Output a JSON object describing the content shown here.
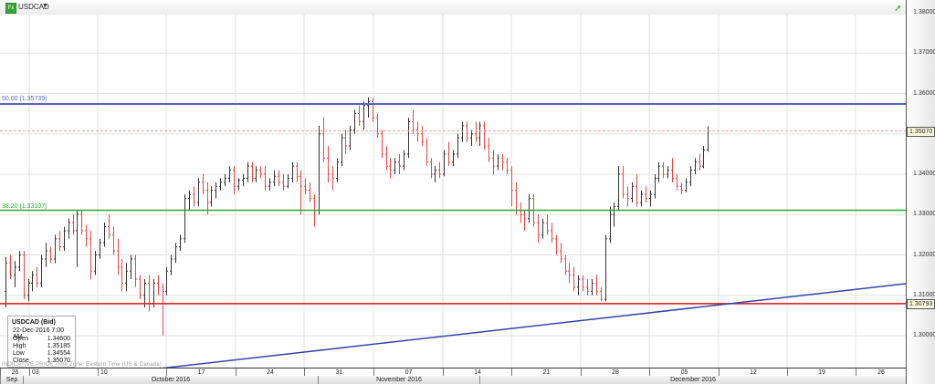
{
  "header": {
    "symbol": "USDCAD",
    "symbol_icon": "fx-icon",
    "dropdown_icon": "caret-down-icon",
    "trend_icon": "trend-up-icon"
  },
  "info_box": {
    "title": "USDCAD (Bid)",
    "datetime": "22-Dec-2016 7:00 AM",
    "rows": [
      {
        "label": "Open",
        "value": "1.34600"
      },
      {
        "label": "High",
        "value": "1.35185"
      },
      {
        "label": "Low",
        "value": "1.34554"
      },
      {
        "label": "Close",
        "value": "1.35070"
      }
    ]
  },
  "footer_note": "INDICATIVE PRICE   Time Zone: Eastern Time (US & Canada)",
  "price_tags": {
    "last": "1.35070",
    "support": "1.30793"
  },
  "fib_labels": {
    "fib50": "50.00 (1.35739)",
    "fib382": "38.20 (1.33107)"
  },
  "colors": {
    "up_bar": "#333333",
    "down_bar": "#ee4444",
    "fib50": "#5566bb",
    "fib382": "#22aa33",
    "support": "#dd1111",
    "trendline": "#3344aa",
    "last_price_line": "#f0a0a0",
    "grid": "#e2e2e2"
  },
  "chart_data": {
    "type": "ohlc",
    "title": "USDCAD",
    "subtitle": "USDCAD (Bid)",
    "xlabel": "",
    "ylabel": "",
    "ylim": [
      1.2925,
      1.383
    ],
    "y_ticks": [
      "1.38000",
      "1.37000",
      "1.36000",
      "1.35000",
      "1.34000",
      "1.33000",
      "1.32000",
      "1.31000",
      "1.30000"
    ],
    "x_ticks": [
      "26",
      "03",
      "10",
      "17",
      "24",
      "31",
      "07",
      "14",
      "21",
      "28",
      "05",
      "12",
      "19",
      "26"
    ],
    "x_months": [
      "Sep",
      "October 2016",
      "November 2016",
      "December 2016"
    ],
    "grid": true,
    "legend": "none",
    "horizontal_lines": [
      {
        "name": "Fibonacci 50.00",
        "value": 1.35739,
        "color": "#5566bb"
      },
      {
        "name": "Fibonacci 38.20",
        "value": 1.33107,
        "color": "#22aa33"
      },
      {
        "name": "Support",
        "value": 1.30793,
        "color": "#dd1111"
      },
      {
        "name": "Last price",
        "value": 1.3507,
        "color": "#f0a0a0",
        "dashed": true
      }
    ],
    "trendline": {
      "from": {
        "date": "2016-10-14",
        "price": 1.2925
      },
      "to": {
        "date": "2016-12-31",
        "price": 1.3126
      }
    },
    "last_bar": {
      "date": "22-Dec-2016 7:00 AM",
      "open": 1.346,
      "high": 1.35185,
      "low": 1.34554,
      "close": 1.3507
    },
    "bar_spacing_px": 4.9,
    "bar_start_x": 6,
    "bars": [
      [
        1.311,
        1.3195,
        1.307,
        1.318
      ],
      [
        1.318,
        1.32,
        1.314,
        1.315
      ],
      [
        1.315,
        1.3185,
        1.312,
        1.317
      ],
      [
        1.317,
        1.321,
        1.316,
        1.32
      ],
      [
        1.32,
        1.321,
        1.309,
        1.31
      ],
      [
        1.31,
        1.314,
        1.3085,
        1.313
      ],
      [
        1.313,
        1.316,
        1.311,
        1.315
      ],
      [
        1.315,
        1.317,
        1.312,
        1.313
      ],
      [
        1.313,
        1.32,
        1.312,
        1.319
      ],
      [
        1.319,
        1.323,
        1.317,
        1.321
      ],
      [
        1.321,
        1.322,
        1.318,
        1.319
      ],
      [
        1.319,
        1.325,
        1.318,
        1.324
      ],
      [
        1.324,
        1.326,
        1.321,
        1.322
      ],
      [
        1.322,
        1.327,
        1.321,
        1.326
      ],
      [
        1.326,
        1.329,
        1.324,
        1.328
      ],
      [
        1.328,
        1.33,
        1.325,
        1.326
      ],
      [
        1.326,
        1.331,
        1.317,
        1.33
      ],
      [
        1.33,
        1.331,
        1.325,
        1.326
      ],
      [
        1.326,
        1.3275,
        1.322,
        1.324
      ],
      [
        1.324,
        1.326,
        1.314,
        1.316
      ],
      [
        1.316,
        1.321,
        1.315,
        1.32
      ],
      [
        1.32,
        1.324,
        1.319,
        1.323
      ],
      [
        1.323,
        1.328,
        1.322,
        1.327
      ],
      [
        1.327,
        1.33,
        1.324,
        1.325
      ],
      [
        1.325,
        1.327,
        1.32,
        1.321
      ],
      [
        1.321,
        1.324,
        1.315,
        1.317
      ],
      [
        1.317,
        1.319,
        1.311,
        1.313
      ],
      [
        1.313,
        1.318,
        1.311,
        1.316
      ],
      [
        1.316,
        1.32,
        1.314,
        1.319
      ],
      [
        1.319,
        1.32,
        1.312,
        1.314
      ],
      [
        1.314,
        1.315,
        1.309,
        1.31
      ],
      [
        1.31,
        1.314,
        1.307,
        1.313
      ],
      [
        1.313,
        1.315,
        1.306,
        1.308
      ],
      [
        1.308,
        1.314,
        1.307,
        1.313
      ],
      [
        1.313,
        1.315,
        1.31,
        1.312
      ],
      [
        1.312,
        1.313,
        1.3,
        1.311
      ],
      [
        1.311,
        1.317,
        1.31,
        1.316
      ],
      [
        1.316,
        1.32,
        1.315,
        1.319
      ],
      [
        1.319,
        1.323,
        1.318,
        1.322
      ],
      [
        1.322,
        1.325,
        1.321,
        1.324
      ],
      [
        1.324,
        1.335,
        1.323,
        1.334
      ],
      [
        1.334,
        1.336,
        1.331,
        1.335
      ],
      [
        1.335,
        1.337,
        1.332,
        1.333
      ],
      [
        1.333,
        1.339,
        1.332,
        1.338
      ],
      [
        1.338,
        1.34,
        1.335,
        1.336
      ],
      [
        1.336,
        1.338,
        1.33,
        1.333
      ],
      [
        1.333,
        1.337,
        1.332,
        1.336
      ],
      [
        1.336,
        1.338,
        1.334,
        1.337
      ],
      [
        1.337,
        1.339,
        1.336,
        1.338
      ],
      [
        1.338,
        1.34,
        1.337,
        1.339
      ],
      [
        1.339,
        1.342,
        1.338,
        1.341
      ],
      [
        1.341,
        1.342,
        1.335,
        1.337
      ],
      [
        1.337,
        1.339,
        1.336,
        1.3385
      ],
      [
        1.3385,
        1.34,
        1.337,
        1.339
      ],
      [
        1.339,
        1.343,
        1.338,
        1.342
      ],
      [
        1.342,
        1.343,
        1.338,
        1.339
      ],
      [
        1.339,
        1.342,
        1.338,
        1.341
      ],
      [
        1.341,
        1.342,
        1.339,
        1.34
      ],
      [
        1.34,
        1.342,
        1.336,
        1.337
      ],
      [
        1.337,
        1.339,
        1.336,
        1.338
      ],
      [
        1.338,
        1.341,
        1.337,
        1.3395
      ],
      [
        1.3395,
        1.341,
        1.337,
        1.338
      ],
      [
        1.338,
        1.34,
        1.336,
        1.337
      ],
      [
        1.337,
        1.34,
        1.3365,
        1.339
      ],
      [
        1.339,
        1.343,
        1.338,
        1.342
      ],
      [
        1.342,
        1.343,
        1.338,
        1.3395
      ],
      [
        1.3395,
        1.341,
        1.33,
        1.337
      ],
      [
        1.337,
        1.339,
        1.335,
        1.336
      ],
      [
        1.336,
        1.338,
        1.333,
        1.334
      ],
      [
        1.334,
        1.335,
        1.327,
        1.331
      ],
      [
        1.331,
        1.352,
        1.33,
        1.35
      ],
      [
        1.35,
        1.354,
        1.343,
        1.344
      ],
      [
        1.344,
        1.347,
        1.338,
        1.34
      ],
      [
        1.34,
        1.342,
        1.336,
        1.339
      ],
      [
        1.339,
        1.344,
        1.338,
        1.343
      ],
      [
        1.343,
        1.35,
        1.342,
        1.349
      ],
      [
        1.349,
        1.351,
        1.345,
        1.347
      ],
      [
        1.347,
        1.352,
        1.346,
        1.351
      ],
      [
        1.351,
        1.356,
        1.35,
        1.355
      ],
      [
        1.355,
        1.357,
        1.352,
        1.353
      ],
      [
        1.353,
        1.358,
        1.351,
        1.357
      ],
      [
        1.357,
        1.359,
        1.354,
        1.358
      ],
      [
        1.358,
        1.359,
        1.353,
        1.354
      ],
      [
        1.354,
        1.355,
        1.349,
        1.35
      ],
      [
        1.35,
        1.351,
        1.344,
        1.345
      ],
      [
        1.345,
        1.347,
        1.341,
        1.342
      ],
      [
        1.342,
        1.344,
        1.339,
        1.341
      ],
      [
        1.341,
        1.344,
        1.34,
        1.343
      ],
      [
        1.343,
        1.345,
        1.34,
        1.342
      ],
      [
        1.342,
        1.346,
        1.341,
        1.345
      ],
      [
        1.345,
        1.354,
        1.344,
        1.353
      ],
      [
        1.353,
        1.356,
        1.35,
        1.351
      ],
      [
        1.351,
        1.353,
        1.348,
        1.35
      ],
      [
        1.35,
        1.352,
        1.347,
        1.348
      ],
      [
        1.348,
        1.349,
        1.342,
        1.343
      ],
      [
        1.343,
        1.344,
        1.339,
        1.34
      ],
      [
        1.34,
        1.342,
        1.338,
        1.341
      ],
      [
        1.341,
        1.343,
        1.339,
        1.34
      ],
      [
        1.34,
        1.346,
        1.3395,
        1.345
      ],
      [
        1.345,
        1.348,
        1.342,
        1.343
      ],
      [
        1.343,
        1.346,
        1.342,
        1.345
      ],
      [
        1.345,
        1.35,
        1.344,
        1.349
      ],
      [
        1.349,
        1.353,
        1.348,
        1.352
      ],
      [
        1.352,
        1.353,
        1.348,
        1.349
      ],
      [
        1.349,
        1.351,
        1.347,
        1.35
      ],
      [
        1.35,
        1.353,
        1.348,
        1.349
      ],
      [
        1.349,
        1.353,
        1.347,
        1.352
      ],
      [
        1.352,
        1.353,
        1.346,
        1.347
      ],
      [
        1.347,
        1.349,
        1.343,
        1.344
      ],
      [
        1.344,
        1.346,
        1.34,
        1.342
      ],
      [
        1.342,
        1.345,
        1.341,
        1.344
      ],
      [
        1.344,
        1.345,
        1.341,
        1.343
      ],
      [
        1.343,
        1.344,
        1.34,
        1.341
      ],
      [
        1.341,
        1.342,
        1.332,
        1.336
      ],
      [
        1.336,
        1.338,
        1.33,
        1.331
      ],
      [
        1.331,
        1.333,
        1.328,
        1.33
      ],
      [
        1.33,
        1.331,
        1.326,
        1.329
      ],
      [
        1.329,
        1.335,
        1.328,
        1.334
      ],
      [
        1.334,
        1.335,
        1.327,
        1.328
      ],
      [
        1.328,
        1.33,
        1.323,
        1.325
      ],
      [
        1.325,
        1.329,
        1.324,
        1.328
      ],
      [
        1.328,
        1.33,
        1.325,
        1.326
      ],
      [
        1.326,
        1.328,
        1.323,
        1.324
      ],
      [
        1.324,
        1.325,
        1.32,
        1.321
      ],
      [
        1.321,
        1.323,
        1.318,
        1.319
      ],
      [
        1.319,
        1.32,
        1.315,
        1.316
      ],
      [
        1.316,
        1.318,
        1.313,
        1.315
      ],
      [
        1.315,
        1.317,
        1.311,
        1.312
      ],
      [
        1.312,
        1.315,
        1.31,
        1.314
      ],
      [
        1.314,
        1.315,
        1.311,
        1.312
      ],
      [
        1.312,
        1.314,
        1.31,
        1.311
      ],
      [
        1.311,
        1.314,
        1.31,
        1.313
      ],
      [
        1.313,
        1.315,
        1.31,
        1.311
      ],
      [
        1.311,
        1.312,
        1.3085,
        1.309
      ],
      [
        1.309,
        1.325,
        1.3085,
        1.324
      ],
      [
        1.324,
        1.332,
        1.323,
        1.33
      ],
      [
        1.33,
        1.333,
        1.327,
        1.332
      ],
      [
        1.332,
        1.342,
        1.331,
        1.34
      ],
      [
        1.34,
        1.342,
        1.334,
        1.335
      ],
      [
        1.335,
        1.337,
        1.332,
        1.334
      ],
      [
        1.334,
        1.338,
        1.333,
        1.337
      ],
      [
        1.337,
        1.34,
        1.332,
        1.333
      ],
      [
        1.333,
        1.336,
        1.332,
        1.335
      ],
      [
        1.335,
        1.337,
        1.333,
        1.334
      ],
      [
        1.334,
        1.336,
        1.332,
        1.335
      ],
      [
        1.335,
        1.34,
        1.334,
        1.339
      ],
      [
        1.339,
        1.343,
        1.338,
        1.342
      ],
      [
        1.342,
        1.343,
        1.339,
        1.34
      ],
      [
        1.34,
        1.342,
        1.339,
        1.341
      ],
      [
        1.341,
        1.344,
        1.338,
        1.339
      ],
      [
        1.339,
        1.34,
        1.336,
        1.337
      ],
      [
        1.337,
        1.338,
        1.335,
        1.336
      ],
      [
        1.336,
        1.339,
        1.3355,
        1.338
      ],
      [
        1.338,
        1.342,
        1.337,
        1.341
      ],
      [
        1.341,
        1.344,
        1.34,
        1.343
      ],
      [
        1.343,
        1.345,
        1.341,
        1.342
      ],
      [
        1.342,
        1.347,
        1.3415,
        1.346
      ],
      [
        1.346,
        1.35185,
        1.34554,
        1.3507
      ]
    ]
  }
}
